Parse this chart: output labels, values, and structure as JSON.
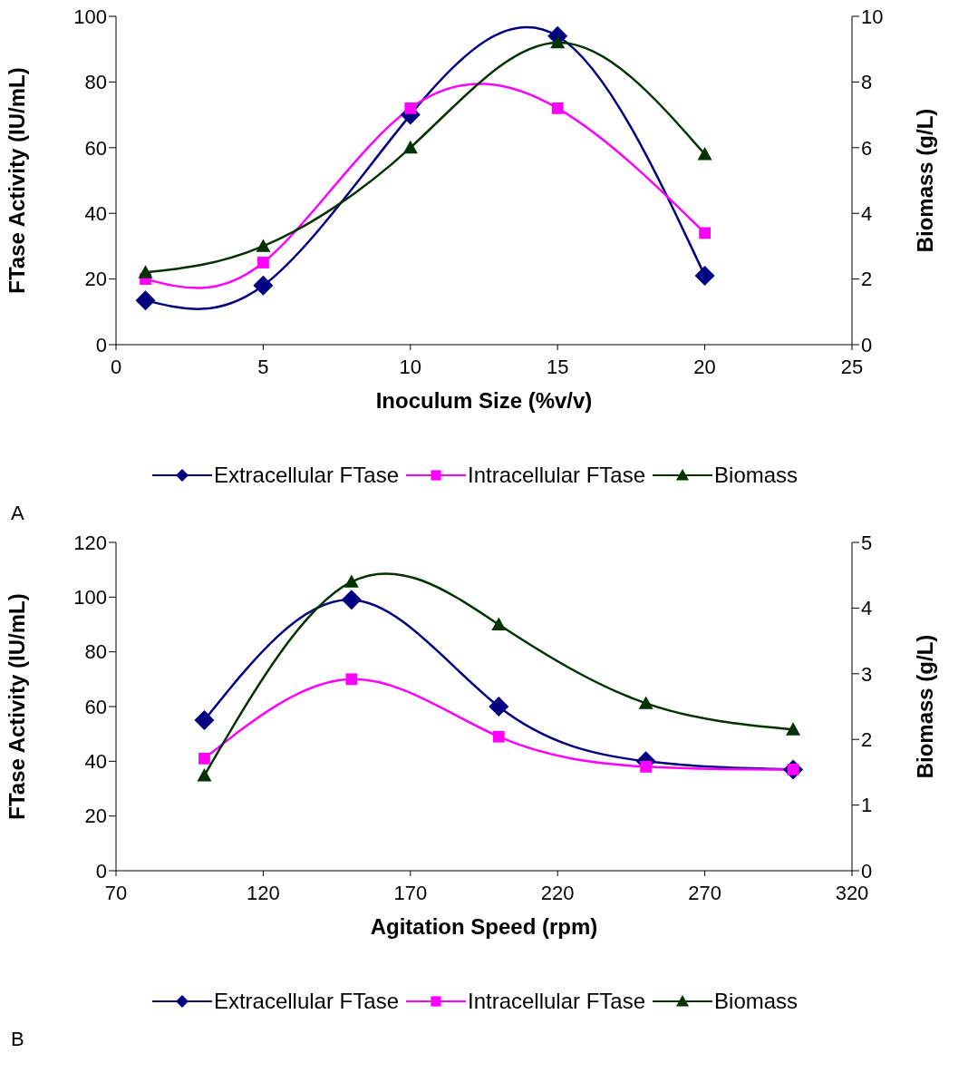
{
  "chart_data": [
    {
      "type": "line",
      "xlabel": "Inoculum Size (%v/v)",
      "ylabel": "FTase Activity (IU/mL)",
      "y2label": "Biomass (g/L)",
      "x": [
        1,
        5,
        10,
        15,
        20
      ],
      "xlim": [
        0,
        25
      ],
      "xticks": [
        0,
        5,
        10,
        15,
        20,
        25
      ],
      "ylim": [
        0,
        100
      ],
      "yticks": [
        0,
        20,
        40,
        60,
        80,
        100
      ],
      "y2lim": [
        0,
        10
      ],
      "y2ticks": [
        0,
        2,
        4,
        6,
        8,
        10
      ],
      "grid": false,
      "legend": "bottom",
      "annotations": [
        "A"
      ],
      "series": [
        {
          "name": "Extracellular FTase",
          "color": "#000080",
          "marker": "diamond",
          "values": [
            13.5,
            18,
            70,
            94,
            21
          ]
        },
        {
          "name": "Intracellular FTase",
          "color": "#ff00ff",
          "marker": "square",
          "values": [
            20,
            25,
            72,
            72,
            34
          ]
        },
        {
          "name": "Biomass",
          "color": "#003300",
          "marker": "triangle",
          "axis": "y2",
          "values": [
            2.2,
            3.0,
            6.0,
            9.2,
            5.8
          ]
        }
      ]
    },
    {
      "type": "line",
      "xlabel": "Agitation Speed (rpm)",
      "ylabel": "FTase Activity (IU/mL)",
      "y2label": "Biomass (g/L)",
      "x": [
        100,
        150,
        200,
        250,
        300
      ],
      "xlim": [
        70,
        320
      ],
      "xticks": [
        70,
        120,
        170,
        220,
        270,
        320
      ],
      "ylim": [
        0,
        120
      ],
      "yticks": [
        0,
        20,
        40,
        60,
        80,
        100,
        120
      ],
      "y2lim": [
        0,
        5
      ],
      "y2ticks": [
        0,
        1,
        2,
        3,
        4,
        5
      ],
      "grid": false,
      "legend": "bottom",
      "annotations": [
        "B"
      ],
      "series": [
        {
          "name": "Extracellular FTase",
          "color": "#000080",
          "marker": "diamond",
          "values": [
            55,
            99,
            60,
            40,
            37
          ]
        },
        {
          "name": "Intracellular FTase",
          "color": "#ff00ff",
          "marker": "square",
          "values": [
            41,
            70,
            49,
            38,
            37
          ]
        },
        {
          "name": "Biomass",
          "color": "#003300",
          "marker": "triangle",
          "axis": "y2",
          "values": [
            1.45,
            4.4,
            3.75,
            2.55,
            2.15
          ]
        }
      ]
    }
  ]
}
